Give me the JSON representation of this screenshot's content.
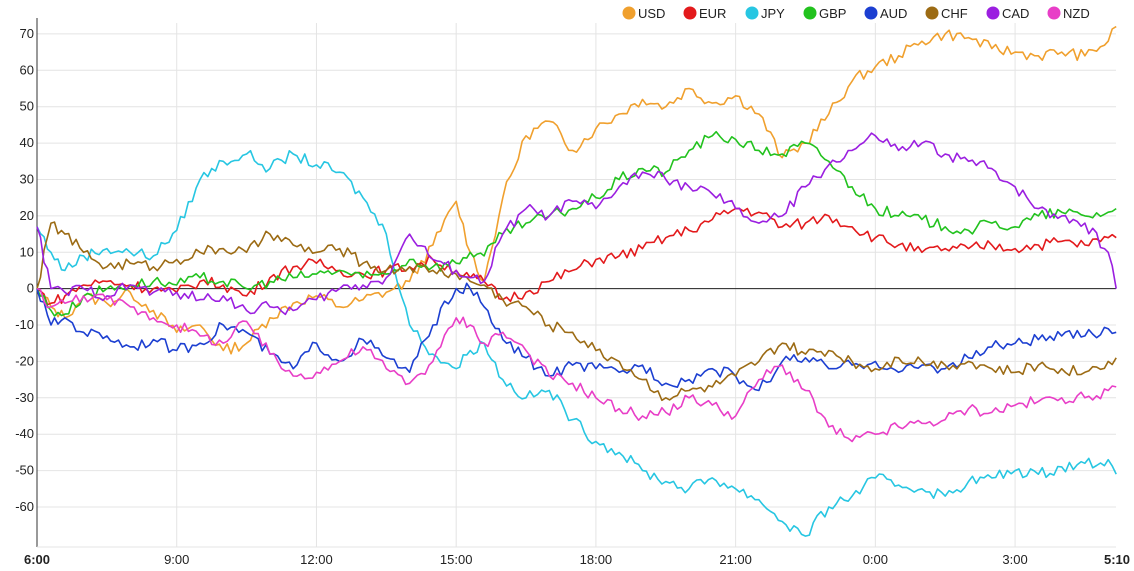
{
  "chart_data": {
    "type": "line",
    "title": "",
    "xlabel": "",
    "ylabel": "",
    "x_range": [
      0,
      23.1667
    ],
    "ylim": [
      -71,
      73
    ],
    "grid": true,
    "legend_position": "top-right",
    "zero_line": true,
    "x_ticks": [
      {
        "label": "6:00",
        "x": 0,
        "bold": true
      },
      {
        "label": "9:00",
        "x": 3
      },
      {
        "label": "12:00",
        "x": 6
      },
      {
        "label": "15:00",
        "x": 9
      },
      {
        "label": "18:00",
        "x": 12
      },
      {
        "label": "21:00",
        "x": 15
      },
      {
        "label": "0:00",
        "x": 18
      },
      {
        "label": "3:00",
        "x": 21
      },
      {
        "label": "5:10",
        "x": 23.1667,
        "bold": true
      }
    ],
    "y_ticks": [
      70,
      60,
      50,
      40,
      30,
      20,
      10,
      0,
      -10,
      -20,
      -30,
      -40,
      -50,
      -60
    ],
    "series": [
      {
        "name": "USD",
        "color": "#f0a02e",
        "x": [
          0,
          0.3,
          0.6,
          1,
          1.5,
          2,
          2.5,
          3,
          3.5,
          4,
          4.5,
          5,
          5.5,
          6,
          6.5,
          7,
          7.5,
          8,
          8.5,
          9,
          9.3,
          9.6,
          10,
          10.5,
          11,
          11.5,
          12,
          12.5,
          13,
          13.5,
          14,
          14.5,
          15,
          15.5,
          16,
          16.5,
          17,
          17.5,
          18,
          18.5,
          19,
          19.5,
          20,
          20.5,
          21,
          21.5,
          22,
          22.5,
          23,
          23.17
        ],
        "values": [
          0,
          -5,
          -8,
          -2,
          -4,
          -1,
          -6,
          -12,
          -10,
          -17,
          -15,
          -8,
          -4,
          -2,
          -5,
          -3,
          -1,
          2,
          12,
          24,
          10,
          2,
          25,
          42,
          46,
          38,
          44,
          48,
          52,
          50,
          55,
          51,
          53,
          48,
          36,
          40,
          48,
          57,
          61,
          64,
          68,
          70,
          69,
          66,
          65,
          64,
          65,
          64,
          68,
          72
        ]
      },
      {
        "name": "EUR",
        "color": "#e31a1c",
        "x": [
          0,
          0.3,
          0.6,
          1,
          1.5,
          2,
          2.5,
          3,
          3.5,
          4,
          4.5,
          5,
          5.5,
          6,
          6.5,
          7,
          7.5,
          8,
          8.5,
          9,
          9.3,
          9.6,
          10,
          10.5,
          11,
          11.5,
          12,
          12.5,
          13,
          13.5,
          14,
          14.5,
          15,
          15.5,
          16,
          16.5,
          17,
          17.5,
          18,
          18.5,
          19,
          19.5,
          20,
          20.5,
          21,
          21.5,
          22,
          22.5,
          23,
          23.17
        ],
        "values": [
          0,
          -4,
          -2,
          1,
          2,
          1,
          0,
          -1,
          2,
          1,
          -2,
          3,
          6,
          7,
          5,
          4,
          5,
          6,
          8,
          5,
          3,
          2,
          -3,
          -1,
          2,
          5,
          8,
          9,
          11,
          14,
          16,
          19,
          22,
          21,
          17,
          18,
          20,
          17,
          14,
          12,
          10,
          11,
          11,
          12,
          11,
          12,
          13,
          12,
          14,
          14
        ]
      },
      {
        "name": "JPY",
        "color": "#27c6e2",
        "x": [
          0,
          0.3,
          0.6,
          1,
          1.5,
          2,
          2.5,
          3,
          3.5,
          4,
          4.5,
          5,
          5.5,
          6,
          6.5,
          7,
          7.5,
          8,
          8.5,
          9,
          9.3,
          9.6,
          10,
          10.5,
          11,
          11.5,
          12,
          12.5,
          13,
          13.5,
          14,
          14.5,
          15,
          15.5,
          16,
          16.5,
          17,
          17.5,
          18,
          18.5,
          19,
          19.5,
          20,
          20.5,
          21,
          21.5,
          22,
          22.5,
          23,
          23.17
        ],
        "values": [
          17,
          10,
          5,
          9,
          11,
          10,
          9,
          16,
          30,
          35,
          37,
          33,
          37,
          34,
          32,
          25,
          15,
          -10,
          -18,
          -22,
          -17,
          -15,
          -25,
          -30,
          -28,
          -36,
          -42,
          -45,
          -50,
          -53,
          -55,
          -52,
          -55,
          -58,
          -64,
          -68,
          -60,
          -57,
          -52,
          -54,
          -55,
          -57,
          -53,
          -52,
          -50,
          -51,
          -49,
          -48,
          -47,
          -51
        ]
      },
      {
        "name": "GBP",
        "color": "#22c21e",
        "x": [
          0,
          0.3,
          0.6,
          1,
          1.5,
          2,
          2.5,
          3,
          3.5,
          4,
          4.5,
          5,
          5.5,
          6,
          6.5,
          7,
          7.5,
          8,
          8.5,
          9,
          9.3,
          9.6,
          10,
          10.5,
          11,
          11.5,
          12,
          12.5,
          13,
          13.5,
          14,
          14.5,
          15,
          15.5,
          16,
          16.5,
          17,
          17.5,
          18,
          18.5,
          19,
          19.5,
          20,
          20.5,
          21,
          21.5,
          22,
          22.5,
          23,
          23.17
        ],
        "values": [
          0,
          -6,
          -7,
          -2,
          0,
          1,
          2,
          1,
          3,
          2,
          0,
          2,
          3,
          4,
          5,
          3,
          4,
          8,
          6,
          7,
          10,
          9,
          15,
          18,
          20,
          22,
          25,
          30,
          33,
          32,
          38,
          42,
          41,
          38,
          37,
          40,
          35,
          28,
          22,
          20,
          19,
          17,
          16,
          18,
          17,
          20,
          21,
          20,
          21,
          22
        ]
      },
      {
        "name": "AUD",
        "color": "#1c3fd1",
        "x": [
          0,
          0.3,
          0.6,
          1,
          1.5,
          2,
          2.5,
          3,
          3.5,
          4,
          4.5,
          5,
          5.5,
          6,
          6.5,
          7,
          7.5,
          8,
          8.5,
          9,
          9.3,
          9.6,
          10,
          10.5,
          11,
          11.5,
          12,
          12.5,
          13,
          13.5,
          14,
          14.5,
          15,
          15.5,
          16,
          16.5,
          17,
          17.5,
          18,
          18.5,
          19,
          19.5,
          20,
          20.5,
          21,
          21.5,
          22,
          22.5,
          23,
          23.17
        ],
        "values": [
          0,
          -10,
          -8,
          -12,
          -13,
          -16,
          -14,
          -17,
          -15,
          -10,
          -12,
          -18,
          -22,
          -15,
          -20,
          -14,
          -19,
          -23,
          -10,
          0,
          0,
          -5,
          -14,
          -19,
          -24,
          -21,
          -22,
          -23,
          -21,
          -26,
          -25,
          -22,
          -24,
          -28,
          -20,
          -19,
          -22,
          -21,
          -20,
          -23,
          -21,
          -22,
          -19,
          -16,
          -15,
          -14,
          -13,
          -13,
          -11,
          -12
        ]
      },
      {
        "name": "CHF",
        "color": "#9c6b14",
        "x": [
          0,
          0.3,
          0.6,
          1,
          1.5,
          2,
          2.5,
          3,
          3.5,
          4,
          4.5,
          5,
          5.5,
          6,
          6.5,
          7,
          7.5,
          8,
          8.5,
          9,
          9.3,
          9.6,
          10,
          10.5,
          11,
          11.5,
          12,
          12.5,
          13,
          13.5,
          14,
          14.5,
          15,
          15.5,
          16,
          16.5,
          17,
          17.5,
          18,
          18.5,
          19,
          19.5,
          20,
          20.5,
          21,
          21.5,
          22,
          22.5,
          23,
          23.17
        ],
        "values": [
          0,
          18,
          15,
          10,
          6,
          7,
          6,
          8,
          10,
          11,
          10,
          15,
          12,
          10,
          11,
          7,
          5,
          6,
          5,
          4,
          2,
          1,
          -3,
          -5,
          -10,
          -12,
          -17,
          -20,
          -25,
          -30,
          -28,
          -27,
          -24,
          -20,
          -15,
          -18,
          -17,
          -20,
          -22,
          -19,
          -20,
          -21,
          -20,
          -22,
          -23,
          -21,
          -22,
          -23,
          -20,
          -19
        ]
      },
      {
        "name": "CAD",
        "color": "#9b1fe0",
        "x": [
          0,
          0.3,
          0.6,
          1,
          1.5,
          2,
          2.5,
          3,
          3.5,
          4,
          4.5,
          5,
          5.5,
          6,
          6.5,
          7,
          7.5,
          8,
          8.5,
          9,
          9.3,
          9.6,
          10,
          10.5,
          11,
          11.5,
          12,
          12.5,
          13,
          13.5,
          14,
          14.5,
          15,
          15.5,
          16,
          16.5,
          17,
          17.5,
          18,
          18.5,
          19,
          19.5,
          20,
          20.5,
          21,
          21.5,
          22,
          22.5,
          23,
          23.17
        ],
        "values": [
          17,
          0,
          -1,
          0,
          -2,
          1,
          -1,
          -1,
          -3,
          -2,
          -6,
          -5,
          -6,
          -3,
          0,
          1,
          3,
          15,
          8,
          5,
          3,
          2,
          15,
          22,
          20,
          24,
          22,
          28,
          32,
          30,
          28,
          26,
          22,
          18,
          20,
          28,
          34,
          38,
          42,
          38,
          40,
          37,
          35,
          33,
          28,
          22,
          20,
          18,
          10,
          0
        ]
      },
      {
        "name": "NZD",
        "color": "#e83ec7",
        "x": [
          0,
          0.3,
          0.6,
          1,
          1.5,
          2,
          2.5,
          3,
          3.5,
          4,
          4.5,
          5,
          5.5,
          6,
          6.5,
          7,
          7.5,
          8,
          8.5,
          9,
          9.3,
          9.6,
          10,
          10.5,
          11,
          11.5,
          12,
          12.5,
          13,
          13.5,
          14,
          14.5,
          15,
          15.5,
          16,
          16.5,
          17,
          17.5,
          18,
          18.5,
          19,
          19.5,
          20,
          20.5,
          21,
          21.5,
          22,
          22.5,
          23,
          23.17
        ],
        "values": [
          0,
          -5,
          -4,
          -2,
          -3,
          -5,
          -8,
          -10,
          -13,
          -15,
          -9,
          -18,
          -24,
          -23,
          -20,
          -16,
          -22,
          -26,
          -20,
          -8,
          -10,
          -15,
          -12,
          -17,
          -24,
          -26,
          -30,
          -33,
          -35,
          -34,
          -30,
          -32,
          -35,
          -25,
          -21,
          -28,
          -38,
          -42,
          -40,
          -38,
          -37,
          -36,
          -33,
          -34,
          -32,
          -31,
          -30,
          -30,
          -28,
          -27
        ]
      }
    ]
  }
}
